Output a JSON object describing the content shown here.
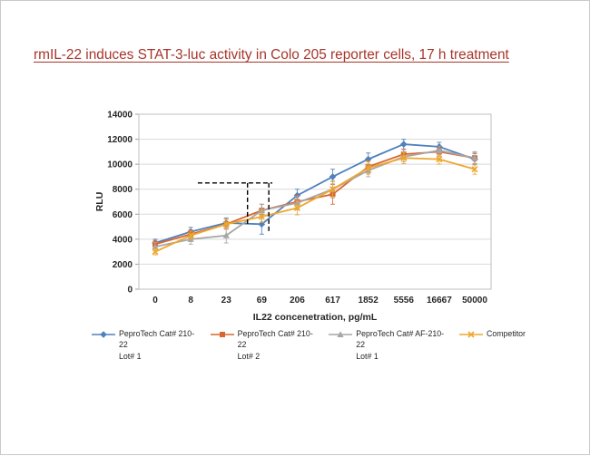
{
  "chart_data": {
    "type": "line",
    "title": "rmIL-22 induces STAT-3-luc activity in Colo 205 reporter cells, 17 h treatment",
    "title_color": "#a8352a",
    "xlabel": "IL22 concenetration, pg/mL",
    "ylabel": "RLU",
    "x_categories": [
      "0",
      "8",
      "23",
      "69",
      "206",
      "617",
      "1852",
      "5556",
      "16667",
      "50000"
    ],
    "ylim": [
      0,
      14000
    ],
    "ytick_step": 2000,
    "grid": true,
    "legend_position": "bottom",
    "series": [
      {
        "name": "PeproTech Cat# 210-22",
        "lot": "Lot# 1",
        "marker": "diamond",
        "color": "#4e81bd",
        "values": [
          3700,
          4600,
          5300,
          5200,
          7500,
          9000,
          10400,
          11600,
          11400,
          10400
        ],
        "errors": [
          300,
          350,
          400,
          800,
          500,
          600,
          500,
          400,
          350,
          450
        ]
      },
      {
        "name": "PeproTech Cat# 210-22",
        "lot": "Lot# 2",
        "marker": "square",
        "color": "#d9662d",
        "values": [
          3600,
          4400,
          5200,
          6300,
          7000,
          7600,
          9800,
          10800,
          11000,
          10500
        ],
        "errors": [
          300,
          350,
          400,
          500,
          550,
          800,
          500,
          400,
          350,
          450
        ]
      },
      {
        "name": "PeproTech Cat# AF-210-22",
        "lot": "Lot# 1",
        "marker": "triangle",
        "color": "#a6a6a6",
        "values": [
          3400,
          4000,
          4300,
          6300,
          6900,
          8000,
          9500,
          10600,
          11100,
          10500
        ],
        "errors": [
          350,
          400,
          600,
          500,
          550,
          700,
          500,
          400,
          350,
          500
        ]
      },
      {
        "name": "Competitor",
        "lot": "",
        "marker": "x",
        "color": "#eda72e",
        "values": [
          3000,
          4300,
          5200,
          5800,
          6500,
          8000,
          9700,
          10500,
          10400,
          9600
        ],
        "errors": [
          250,
          350,
          400,
          450,
          550,
          600,
          500,
          450,
          400,
          400
        ]
      }
    ],
    "annotation": {
      "dash_h": {
        "y": 8500,
        "x_from_index": 1.2,
        "x_to_index": 3.3
      },
      "dash_v": [
        {
          "index": 2.6,
          "y_from": 8500,
          "y_to": 5100
        },
        {
          "index": 3.2,
          "y_from": 8500,
          "y_to": 4500
        }
      ]
    }
  }
}
